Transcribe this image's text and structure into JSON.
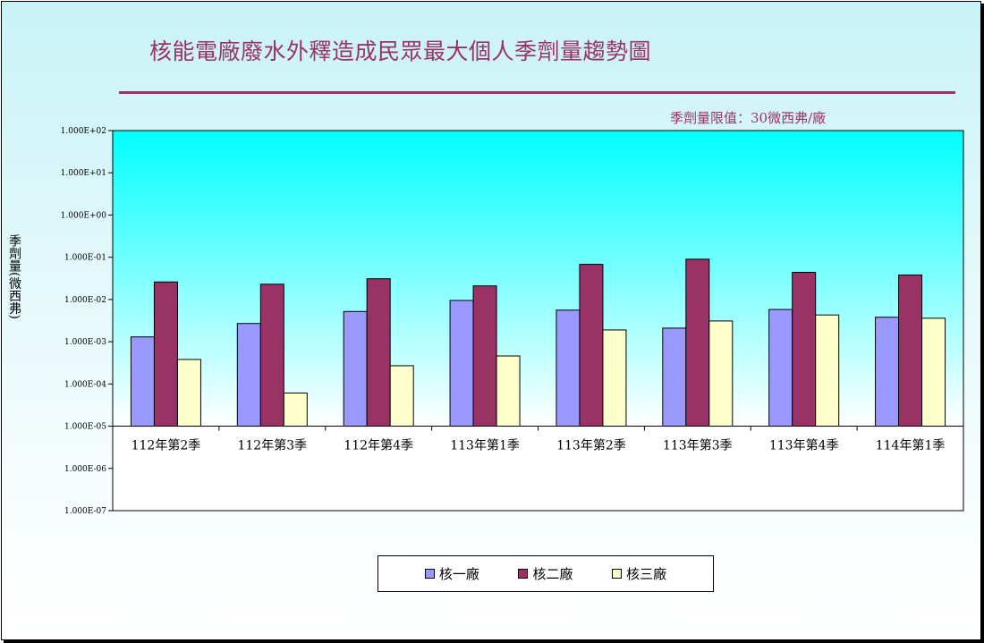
{
  "chart_data": {
    "type": "bar",
    "title": "核能電廠廢水外釋造成民眾最大個人季劑量趨勢圖",
    "annotation": "季劑量限值：30微西弗/廠",
    "ylabel": "季劑量(微西弗)",
    "xlabel": "",
    "yscale": "log",
    "ylim": [
      1e-07,
      100
    ],
    "baseline": 1e-05,
    "yticks": [
      100,
      10,
      1,
      0.1,
      0.01,
      0.001,
      0.0001,
      1e-05,
      1e-06,
      1e-07
    ],
    "ytick_labels": [
      "1.000E+02",
      "1.000E+01",
      "1.000E+00",
      "1.000E-01",
      "1.000E-02",
      "1.000E-03",
      "1.000E-04",
      "1.000E-05",
      "1.000E-06",
      "1.000E-07"
    ],
    "categories": [
      "112年第2季",
      "112年第3季",
      "112年第4季",
      "113年第1季",
      "113年第2季",
      "113年第3季",
      "113年第4季",
      "114年第1季"
    ],
    "series": [
      {
        "name": "核一廠",
        "color": "#9999ff",
        "values": [
          0.0013,
          0.0027,
          0.0052,
          0.0095,
          0.0056,
          0.0021,
          0.0058,
          0.0038
        ]
      },
      {
        "name": "核二廠",
        "color": "#993366",
        "values": [
          0.026,
          0.023,
          0.031,
          0.021,
          0.068,
          0.09,
          0.044,
          0.038
        ]
      },
      {
        "name": "核三廠",
        "color": "#ffffcc",
        "values": [
          0.00038,
          6.1e-05,
          0.00027,
          0.00046,
          0.0019,
          0.0031,
          0.0043,
          0.0036
        ]
      }
    ],
    "legend_position": "bottom",
    "grid": false,
    "plot_background": "gradient-cyan"
  }
}
